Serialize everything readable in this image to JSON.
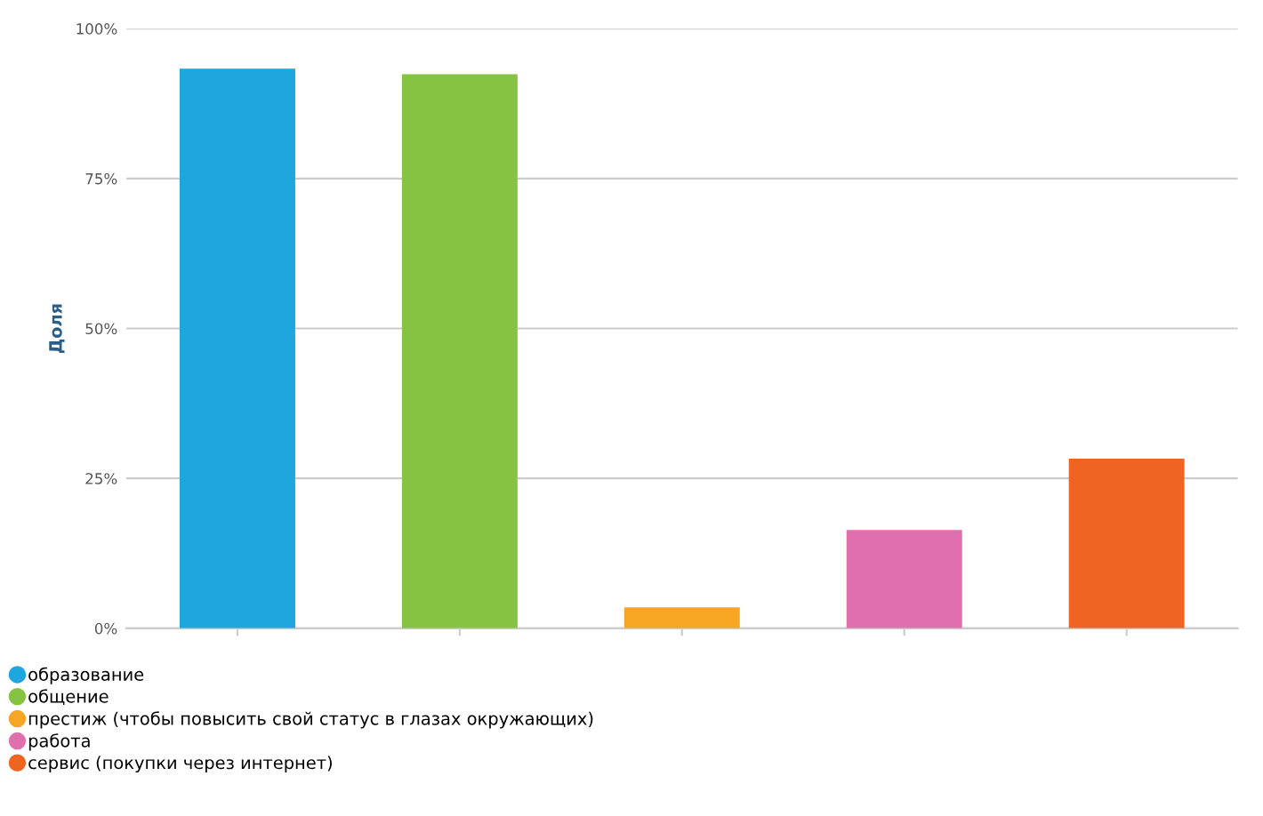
{
  "chart_data": {
    "type": "bar",
    "ylabel": "Доля",
    "categories": [
      null,
      null,
      null,
      null,
      null
    ],
    "series": [
      {
        "name": "образование",
        "color": "#1ea6df",
        "values": [
          93.3,
          null,
          null,
          null,
          null
        ]
      },
      {
        "name": "общение",
        "color": "#86c343",
        "values": [
          null,
          92.4,
          null,
          null,
          null
        ]
      },
      {
        "name": "престиж (чтобы повысить свой статус в глазах окружающих)",
        "color": "#f6a623",
        "values": [
          null,
          null,
          3.5,
          null,
          null
        ]
      },
      {
        "name": "работа",
        "color": "#e070ad",
        "values": [
          null,
          null,
          null,
          16.4,
          null
        ]
      },
      {
        "name": "сервис (покупки через интернет)",
        "color": "#ef6423",
        "values": [
          null,
          null,
          null,
          null,
          28.3
        ]
      }
    ],
    "ylim": [
      0,
      100
    ],
    "yticks": [
      {
        "value": 0,
        "label": "0%"
      },
      {
        "value": 25,
        "label": "25%"
      },
      {
        "value": 50,
        "label": "50%"
      },
      {
        "value": 75,
        "label": "75%"
      },
      {
        "value": 100,
        "label": "100%"
      }
    ],
    "grid": "y",
    "legend": "bottom left",
    "marker": "circle"
  }
}
